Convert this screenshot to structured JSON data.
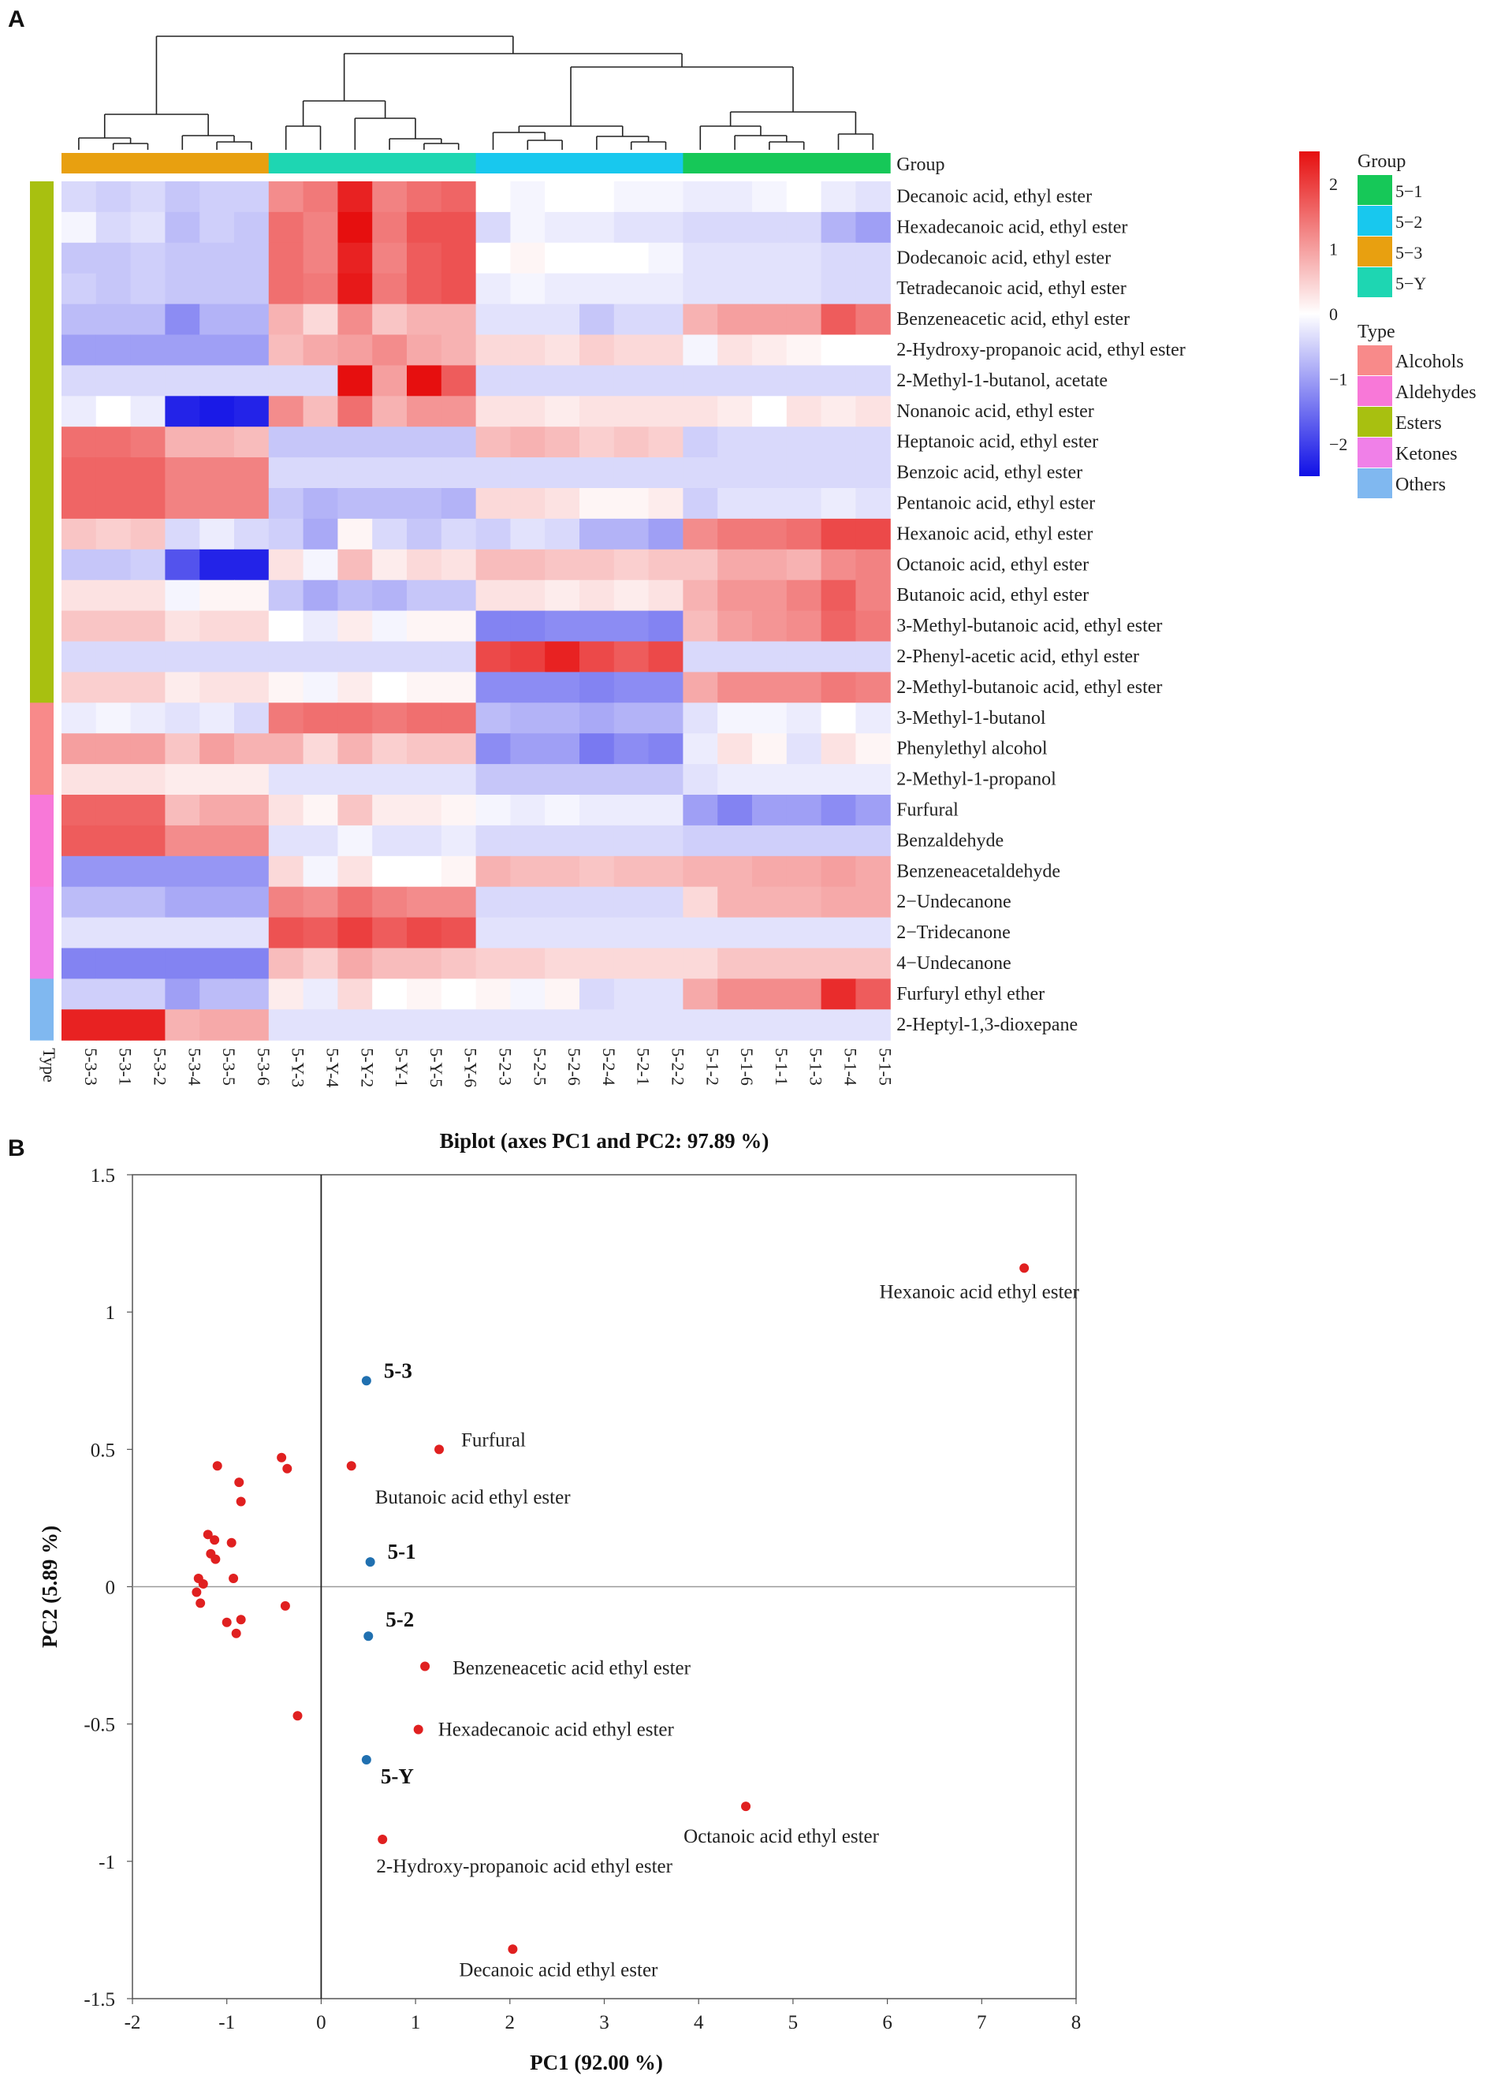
{
  "panel_a_label": "A",
  "panel_b_label": "B",
  "chart_data": [
    {
      "type": "heatmap",
      "group_header": "Group",
      "type_header": "Type",
      "columns": [
        "5-3-3",
        "5-3-1",
        "5-3-2",
        "5-3-4",
        "5-3-5",
        "5-3-6",
        "5-Y-3",
        "5-Y-4",
        "5-Y-2",
        "5-Y-1",
        "5-Y-5",
        "5-Y-6",
        "5-2-3",
        "5-2-5",
        "5-2-6",
        "5-2-4",
        "5-2-1",
        "5-2-2",
        "5-1-2",
        "5-1-6",
        "5-1-1",
        "5-1-3",
        "5-1-4",
        "5-1-5"
      ],
      "column_groups": [
        "5-3",
        "5-3",
        "5-3",
        "5-3",
        "5-3",
        "5-3",
        "5-Y",
        "5-Y",
        "5-Y",
        "5-Y",
        "5-Y",
        "5-Y",
        "5-2",
        "5-2",
        "5-2",
        "5-2",
        "5-2",
        "5-2",
        "5-1",
        "5-1",
        "5-1",
        "5-1",
        "5-1",
        "5-1"
      ],
      "rows": [
        "Decanoic acid, ethyl ester",
        "Hexadecanoic acid, ethyl ester",
        "Dodecanoic acid, ethyl ester",
        "Tetradecanoic acid, ethyl ester",
        "Benzeneacetic acid, ethyl ester",
        "2-Hydroxy-propanoic acid, ethyl ester",
        "2-Methyl-1-butanol, acetate",
        "Nonanoic acid, ethyl ester",
        "Heptanoic acid, ethyl ester",
        "Benzoic acid, ethyl ester",
        "Pentanoic acid, ethyl ester",
        "Hexanoic acid, ethyl ester",
        "Octanoic acid, ethyl ester",
        "Butanoic acid, ethyl ester",
        "3-Methyl-butanoic acid, ethyl ester",
        "2-Phenyl-acetic acid, ethyl ester",
        "2-Methyl-butanoic acid, ethyl ester",
        "3-Methyl-1-butanol",
        "Phenylethyl alcohol",
        "2-Methyl-1-propanol",
        "Furfural",
        "Benzaldehyde",
        "Benzeneacetaldehyde",
        "2−Undecanone",
        "2−Tridecanone",
        "4−Undecanone",
        "Furfuryl ethyl ether",
        "2-Heptyl-1,3-dioxepane"
      ],
      "row_types": [
        "Esters",
        "Esters",
        "Esters",
        "Esters",
        "Esters",
        "Esters",
        "Esters",
        "Esters",
        "Esters",
        "Esters",
        "Esters",
        "Esters",
        "Esters",
        "Esters",
        "Esters",
        "Esters",
        "Esters",
        "Alcohols",
        "Alcohols",
        "Alcohols",
        "Aldehydes",
        "Aldehydes",
        "Aldehydes",
        "Ketones",
        "Ketones",
        "Ketones",
        "Others",
        "Others"
      ],
      "values": [
        [
          -0.4,
          -0.5,
          -0.4,
          -0.6,
          -0.5,
          -0.5,
          1.2,
          1.4,
          2.3,
          1.3,
          1.5,
          1.6,
          0.0,
          -0.1,
          0.0,
          0.0,
          -0.1,
          -0.1,
          -0.2,
          -0.2,
          -0.1,
          0.0,
          -0.2,
          -0.3
        ],
        [
          -0.1,
          -0.4,
          -0.3,
          -0.7,
          -0.5,
          -0.6,
          1.5,
          1.3,
          2.5,
          1.4,
          1.8,
          1.8,
          -0.4,
          -0.1,
          -0.2,
          -0.2,
          -0.3,
          -0.3,
          -0.4,
          -0.4,
          -0.4,
          -0.4,
          -0.8,
          -1.0
        ],
        [
          -0.6,
          -0.6,
          -0.5,
          -0.6,
          -0.6,
          -0.6,
          1.5,
          1.3,
          2.3,
          1.3,
          1.7,
          1.8,
          0.0,
          0.1,
          0.0,
          0.0,
          0.0,
          -0.1,
          -0.3,
          -0.3,
          -0.3,
          -0.3,
          -0.4,
          -0.4
        ],
        [
          -0.5,
          -0.6,
          -0.5,
          -0.6,
          -0.6,
          -0.6,
          1.5,
          1.4,
          2.4,
          1.4,
          1.7,
          1.8,
          -0.2,
          -0.1,
          -0.2,
          -0.2,
          -0.2,
          -0.2,
          -0.3,
          -0.3,
          -0.3,
          -0.3,
          -0.4,
          -0.4
        ],
        [
          -0.7,
          -0.7,
          -0.7,
          -1.2,
          -0.8,
          -0.8,
          0.8,
          0.4,
          1.2,
          0.6,
          0.8,
          0.8,
          -0.3,
          -0.3,
          -0.3,
          -0.6,
          -0.4,
          -0.4,
          0.8,
          1.0,
          1.0,
          1.0,
          1.7,
          1.4
        ],
        [
          -1.0,
          -1.0,
          -1.0,
          -1.0,
          -1.0,
          -1.0,
          0.7,
          0.9,
          1.0,
          1.2,
          0.9,
          0.8,
          0.4,
          0.4,
          0.3,
          0.5,
          0.4,
          0.4,
          -0.1,
          0.3,
          0.2,
          0.1,
          0.0,
          0.0
        ],
        [
          -0.4,
          -0.4,
          -0.4,
          -0.4,
          -0.4,
          -0.4,
          -0.4,
          -0.4,
          2.6,
          1.0,
          2.5,
          1.7,
          -0.4,
          -0.4,
          -0.4,
          -0.4,
          -0.4,
          -0.4,
          -0.4,
          -0.4,
          -0.4,
          -0.4,
          -0.4,
          -0.4
        ],
        [
          -0.2,
          0.0,
          -0.2,
          -2.3,
          -2.4,
          -2.3,
          1.2,
          0.7,
          1.5,
          0.8,
          1.1,
          1.1,
          0.3,
          0.3,
          0.2,
          0.3,
          0.3,
          0.3,
          0.3,
          0.2,
          0.0,
          0.3,
          0.2,
          0.3
        ],
        [
          1.5,
          1.5,
          1.4,
          0.8,
          0.8,
          0.7,
          -0.6,
          -0.6,
          -0.6,
          -0.6,
          -0.6,
          -0.6,
          0.7,
          0.8,
          0.7,
          0.5,
          0.6,
          0.5,
          -0.5,
          -0.4,
          -0.4,
          -0.4,
          -0.4,
          -0.4
        ],
        [
          1.6,
          1.6,
          1.6,
          1.3,
          1.3,
          1.3,
          -0.4,
          -0.4,
          -0.4,
          -0.4,
          -0.4,
          -0.4,
          -0.4,
          -0.4,
          -0.4,
          -0.4,
          -0.4,
          -0.4,
          -0.4,
          -0.4,
          -0.4,
          -0.4,
          -0.4,
          -0.4
        ],
        [
          1.6,
          1.6,
          1.6,
          1.3,
          1.3,
          1.3,
          -0.6,
          -0.8,
          -0.7,
          -0.7,
          -0.7,
          -0.8,
          0.4,
          0.4,
          0.3,
          0.1,
          0.1,
          0.2,
          -0.5,
          -0.3,
          -0.3,
          -0.3,
          -0.2,
          -0.3
        ],
        [
          0.6,
          0.5,
          0.6,
          -0.4,
          -0.2,
          -0.4,
          -0.5,
          -0.9,
          0.1,
          -0.4,
          -0.6,
          -0.4,
          -0.5,
          -0.3,
          -0.4,
          -0.8,
          -0.8,
          -1.0,
          1.2,
          1.4,
          1.4,
          1.5,
          1.9,
          1.9
        ],
        [
          -0.6,
          -0.6,
          -0.5,
          -1.8,
          -2.3,
          -2.3,
          0.3,
          -0.1,
          0.7,
          0.2,
          0.4,
          0.3,
          0.7,
          0.7,
          0.6,
          0.6,
          0.5,
          0.6,
          0.6,
          0.9,
          0.9,
          0.8,
          1.2,
          1.3
        ],
        [
          0.3,
          0.3,
          0.3,
          -0.1,
          0.1,
          0.1,
          -0.6,
          -0.9,
          -0.7,
          -0.8,
          -0.6,
          -0.6,
          0.3,
          0.3,
          0.2,
          0.3,
          0.2,
          0.3,
          0.8,
          1.1,
          1.1,
          1.3,
          1.7,
          1.3
        ],
        [
          0.6,
          0.6,
          0.6,
          0.3,
          0.4,
          0.4,
          0.0,
          -0.2,
          0.2,
          -0.1,
          0.1,
          0.1,
          -1.3,
          -1.3,
          -1.2,
          -1.2,
          -1.2,
          -1.3,
          0.7,
          1.0,
          1.1,
          1.2,
          1.6,
          1.4
        ],
        [
          -0.4,
          -0.4,
          -0.4,
          -0.4,
          -0.4,
          -0.4,
          -0.4,
          -0.4,
          -0.4,
          -0.4,
          -0.4,
          -0.4,
          1.9,
          2.0,
          2.3,
          1.9,
          1.7,
          1.9,
          -0.4,
          -0.4,
          -0.4,
          -0.4,
          -0.4,
          -0.4
        ],
        [
          0.5,
          0.5,
          0.5,
          0.2,
          0.3,
          0.3,
          0.1,
          -0.1,
          0.2,
          0.0,
          0.1,
          0.1,
          -1.2,
          -1.2,
          -1.2,
          -1.3,
          -1.2,
          -1.2,
          0.9,
          1.2,
          1.2,
          1.2,
          1.4,
          1.3
        ],
        [
          -0.2,
          -0.1,
          -0.2,
          -0.3,
          -0.2,
          -0.4,
          1.4,
          1.5,
          1.5,
          1.4,
          1.5,
          1.5,
          -0.7,
          -0.8,
          -0.8,
          -0.9,
          -0.8,
          -0.8,
          -0.3,
          -0.1,
          -0.1,
          -0.2,
          0.0,
          -0.2
        ],
        [
          1.0,
          1.0,
          1.0,
          0.6,
          1.0,
          0.8,
          0.8,
          0.4,
          0.8,
          0.5,
          0.6,
          0.6,
          -1.2,
          -1.0,
          -1.0,
          -1.4,
          -1.2,
          -1.3,
          -0.2,
          0.3,
          0.1,
          -0.3,
          0.3,
          0.1
        ],
        [
          0.3,
          0.3,
          0.3,
          0.2,
          0.2,
          0.2,
          -0.3,
          -0.3,
          -0.3,
          -0.3,
          -0.3,
          -0.3,
          -0.6,
          -0.6,
          -0.6,
          -0.6,
          -0.6,
          -0.6,
          -0.3,
          -0.2,
          -0.2,
          -0.2,
          -0.2,
          -0.2
        ],
        [
          1.6,
          1.6,
          1.6,
          0.7,
          0.9,
          0.9,
          0.3,
          0.1,
          0.6,
          0.2,
          0.2,
          0.1,
          -0.1,
          -0.2,
          -0.1,
          -0.2,
          -0.2,
          -0.2,
          -1.0,
          -1.3,
          -1.0,
          -1.0,
          -1.2,
          -1.0
        ],
        [
          1.7,
          1.7,
          1.7,
          1.2,
          1.2,
          1.2,
          -0.3,
          -0.3,
          -0.1,
          -0.3,
          -0.3,
          -0.2,
          -0.4,
          -0.4,
          -0.4,
          -0.4,
          -0.4,
          -0.4,
          -0.5,
          -0.5,
          -0.5,
          -0.5,
          -0.5,
          -0.5
        ],
        [
          -1.1,
          -1.1,
          -1.1,
          -1.1,
          -1.1,
          -1.1,
          0.4,
          -0.1,
          0.3,
          0.0,
          0.0,
          0.1,
          0.8,
          0.7,
          0.7,
          0.6,
          0.7,
          0.7,
          0.8,
          0.8,
          0.9,
          0.9,
          1.0,
          0.9
        ],
        [
          -0.7,
          -0.7,
          -0.7,
          -0.9,
          -0.9,
          -0.9,
          1.3,
          1.2,
          1.5,
          1.3,
          1.2,
          1.2,
          -0.4,
          -0.4,
          -0.4,
          -0.4,
          -0.4,
          -0.4,
          0.4,
          0.8,
          0.8,
          0.8,
          0.9,
          0.9
        ],
        [
          -0.3,
          -0.3,
          -0.3,
          -0.3,
          -0.3,
          -0.3,
          1.8,
          1.7,
          2.0,
          1.7,
          1.9,
          1.8,
          -0.3,
          -0.3,
          -0.3,
          -0.3,
          -0.3,
          -0.3,
          -0.3,
          -0.3,
          -0.3,
          -0.3,
          -0.3,
          -0.3
        ],
        [
          -1.3,
          -1.3,
          -1.3,
          -1.3,
          -1.3,
          -1.3,
          0.7,
          0.5,
          0.9,
          0.7,
          0.7,
          0.6,
          0.5,
          0.5,
          0.4,
          0.4,
          0.4,
          0.4,
          0.4,
          0.6,
          0.6,
          0.6,
          0.6,
          0.6
        ],
        [
          -0.5,
          -0.5,
          -0.5,
          -1.0,
          -0.7,
          -0.7,
          0.2,
          -0.2,
          0.4,
          0.0,
          0.1,
          0.0,
          0.1,
          -0.1,
          0.1,
          -0.4,
          -0.3,
          -0.3,
          0.9,
          1.2,
          1.2,
          1.2,
          2.2,
          1.7
        ],
        [
          2.3,
          2.3,
          2.3,
          0.8,
          0.9,
          0.9,
          -0.3,
          -0.3,
          -0.3,
          -0.3,
          -0.3,
          -0.3,
          -0.3,
          -0.3,
          -0.3,
          -0.3,
          -0.3,
          -0.3,
          -0.3,
          -0.3,
          -0.3,
          -0.3,
          -0.3,
          -0.3
        ]
      ],
      "color_scale": {
        "min": -2.5,
        "max": 2.5,
        "low": "#1010e6",
        "mid": "#ffffff",
        "high": "#e60f0f",
        "ticks": [
          "2",
          "1",
          "0",
          "−1",
          "−2"
        ]
      },
      "group_legend": {
        "title": "Group",
        "items": [
          {
            "label": "5−1",
            "color": "#16c858"
          },
          {
            "label": "5−2",
            "color": "#18c8ee"
          },
          {
            "label": "5−3",
            "color": "#e8a010"
          },
          {
            "label": "5−Y",
            "color": "#1ed6b2"
          }
        ]
      },
      "type_legend": {
        "title": "Type",
        "items": [
          {
            "label": "Alcohols",
            "color": "#f88a8a"
          },
          {
            "label": "Aldehydes",
            "color": "#f878d8"
          },
          {
            "label": "Esters",
            "color": "#a8c010"
          },
          {
            "label": "Ketones",
            "color": "#f080e8"
          },
          {
            "label": "Others",
            "color": "#80b8f0"
          }
        ]
      },
      "dendrogram": "hierarchical clustering of samples"
    },
    {
      "type": "scatter",
      "title": "Biplot (axes PC1 and PC2: 97.89 %)",
      "xlabel": "PC1 (92.00 %)",
      "ylabel": "PC2 (5.89 %)",
      "xlim": [
        -2,
        8
      ],
      "ylim": [
        -1.5,
        1.5
      ],
      "xticks": [
        "-2",
        "-1",
        "0",
        "1",
        "2",
        "3",
        "4",
        "5",
        "6",
        "7",
        "8"
      ],
      "yticks": [
        "1.5",
        "1",
        "0.5",
        "0",
        "-0.5",
        "-1",
        "-1.5"
      ],
      "xtick_values": [
        -2,
        -1,
        0,
        1,
        2,
        3,
        4,
        5,
        6,
        7,
        8
      ],
      "ytick_values": [
        1.5,
        1,
        0.5,
        0,
        -0.5,
        -1,
        -1.5
      ],
      "observations": {
        "color": "#2070b0",
        "points": [
          {
            "label": "5-3",
            "x": 0.48,
            "y": 0.75
          },
          {
            "label": "5-1",
            "x": 0.52,
            "y": 0.09
          },
          {
            "label": "5-2",
            "x": 0.5,
            "y": -0.18
          },
          {
            "label": "5-Y",
            "x": 0.48,
            "y": -0.63
          }
        ]
      },
      "variables": {
        "color": "#e02020",
        "points": [
          {
            "label": "Hexanoic acid ethyl ester",
            "x": 7.45,
            "y": 1.16
          },
          {
            "label": "Furfural",
            "x": 1.25,
            "y": 0.5
          },
          {
            "label": "Butanoic acid ethyl ester",
            "x": 0.32,
            "y": 0.44
          },
          {
            "label": "Benzeneacetic acid ethyl ester",
            "x": 1.1,
            "y": -0.29
          },
          {
            "label": "Hexadecanoic acid ethyl ester",
            "x": 1.03,
            "y": -0.52
          },
          {
            "label": "Octanoic acid ethyl ester",
            "x": 4.5,
            "y": -0.8
          },
          {
            "label": "2-Hydroxy-propanoic acid  ethyl ester",
            "x": 0.65,
            "y": -0.92
          },
          {
            "label": "Decanoic acid ethyl ester",
            "x": 2.03,
            "y": -1.32
          },
          {
            "label": "",
            "x": -1.1,
            "y": 0.44
          },
          {
            "label": "",
            "x": -0.42,
            "y": 0.47
          },
          {
            "label": "",
            "x": -0.36,
            "y": 0.43
          },
          {
            "label": "",
            "x": -0.87,
            "y": 0.38
          },
          {
            "label": "",
            "x": -0.85,
            "y": 0.31
          },
          {
            "label": "",
            "x": -1.2,
            "y": 0.19
          },
          {
            "label": "",
            "x": -1.13,
            "y": 0.17
          },
          {
            "label": "",
            "x": -0.95,
            "y": 0.16
          },
          {
            "label": "",
            "x": -1.17,
            "y": 0.12
          },
          {
            "label": "",
            "x": -1.12,
            "y": 0.1
          },
          {
            "label": "",
            "x": -1.3,
            "y": 0.03
          },
          {
            "label": "",
            "x": -0.93,
            "y": 0.03
          },
          {
            "label": "",
            "x": -1.25,
            "y": 0.01
          },
          {
            "label": "",
            "x": -1.32,
            "y": -0.02
          },
          {
            "label": "",
            "x": -1.28,
            "y": -0.06
          },
          {
            "label": "",
            "x": -0.38,
            "y": -0.07
          },
          {
            "label": "",
            "x": -1.0,
            "y": -0.13
          },
          {
            "label": "",
            "x": -0.85,
            "y": -0.12
          },
          {
            "label": "",
            "x": -0.9,
            "y": -0.17
          },
          {
            "label": "",
            "x": -0.25,
            "y": -0.47
          }
        ]
      }
    }
  ]
}
